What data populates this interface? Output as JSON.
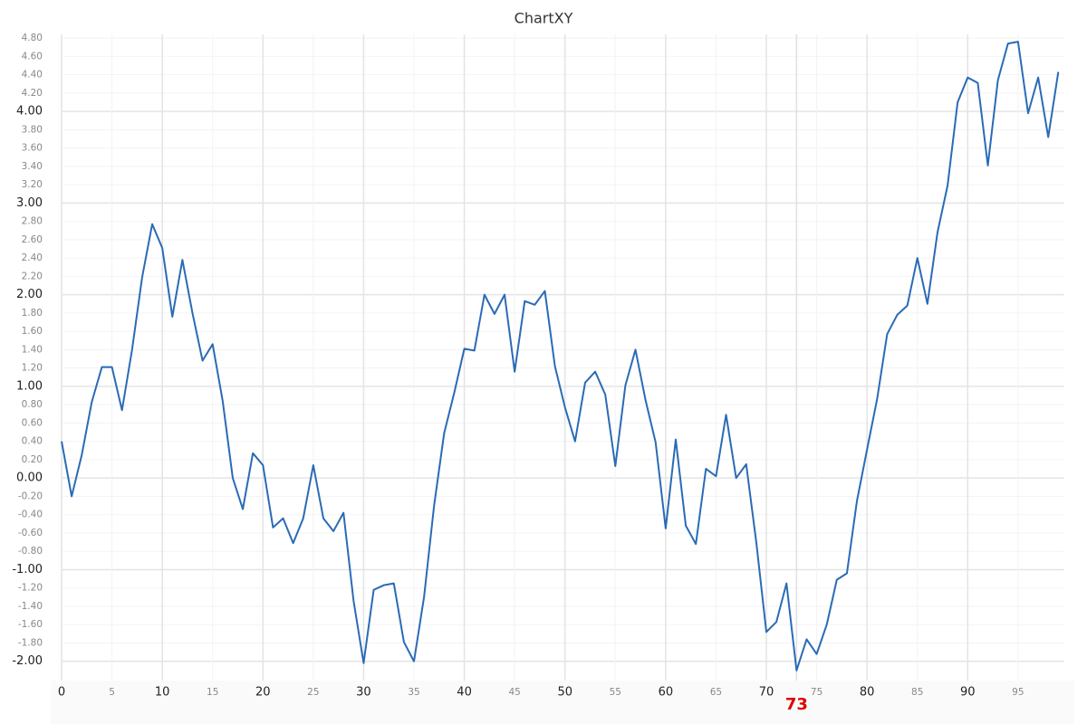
{
  "chart_data": {
    "type": "line",
    "title": "ChartXY",
    "x": [
      0,
      1,
      2,
      3,
      4,
      5,
      6,
      7,
      8,
      9,
      10,
      11,
      12,
      13,
      14,
      15,
      16,
      17,
      18,
      19,
      20,
      21,
      22,
      23,
      24,
      25,
      26,
      27,
      28,
      29,
      30,
      31,
      32,
      33,
      34,
      35,
      36,
      37,
      38,
      39,
      40,
      41,
      42,
      43,
      44,
      45,
      46,
      47,
      48,
      49,
      50,
      51,
      52,
      53,
      54,
      55,
      56,
      57,
      58,
      59,
      60,
      61,
      62,
      63,
      64,
      65,
      66,
      67,
      68,
      69,
      70,
      71,
      72,
      73,
      74,
      75,
      76,
      77,
      78,
      79,
      80,
      81,
      82,
      83,
      84,
      85,
      86,
      87,
      88,
      89,
      90,
      91,
      92,
      93,
      94,
      95,
      96,
      97,
      98,
      99
    ],
    "values": [
      0.4,
      -0.2,
      0.25,
      0.83,
      1.21,
      1.21,
      0.74,
      1.4,
      2.19,
      2.77,
      2.51,
      1.76,
      2.38,
      1.8,
      1.28,
      1.46,
      0.84,
      0.0,
      -0.34,
      0.27,
      0.14,
      -0.54,
      -0.44,
      -0.71,
      -0.44,
      0.14,
      -0.44,
      -0.58,
      -0.38,
      -1.34,
      -2.02,
      -1.22,
      -1.17,
      -1.15,
      -1.79,
      -2.0,
      -1.3,
      -0.3,
      0.49,
      0.93,
      1.41,
      1.39,
      2.0,
      1.79,
      2.0,
      1.16,
      1.93,
      1.89,
      2.04,
      1.22,
      0.77,
      0.4,
      1.04,
      1.16,
      0.91,
      0.13,
      1.01,
      1.4,
      0.85,
      0.39,
      -0.55,
      0.42,
      -0.52,
      -0.72,
      0.1,
      0.02,
      0.69,
      0.0,
      0.15,
      -0.7,
      -1.68,
      -1.57,
      -1.15,
      -2.1,
      -1.76,
      -1.92,
      -1.6,
      -1.11,
      -1.04,
      -0.25,
      0.31,
      0.86,
      1.57,
      1.78,
      1.88,
      2.4,
      1.9,
      2.68,
      3.19,
      4.1,
      4.37,
      4.31,
      3.41,
      4.34,
      4.74,
      4.76,
      3.98,
      4.37,
      3.72,
      4.43
    ],
    "color": "#2a6bb5",
    "xlim": [
      0,
      99.6
    ],
    "xticks": [
      0,
      5,
      10,
      15,
      20,
      25,
      30,
      35,
      40,
      45,
      50,
      55,
      60,
      65,
      70,
      75,
      80,
      85,
      90,
      95
    ],
    "ylim": [
      -2.21,
      4.84
    ],
    "yticks": [
      {
        "value": -2,
        "label": "-2.00"
      },
      {
        "value": -1.8,
        "label": "-1.80"
      },
      {
        "value": -1.6,
        "label": "-1.60"
      },
      {
        "value": -1.4,
        "label": "-1.40"
      },
      {
        "value": -1.2,
        "label": "-1.20"
      },
      {
        "value": -1,
        "label": "-1.00"
      },
      {
        "value": -0.8,
        "label": "-0.80"
      },
      {
        "value": -0.6,
        "label": "-0.60"
      },
      {
        "value": -0.4,
        "label": "-0.40"
      },
      {
        "value": -0.2,
        "label": "-0.20"
      },
      {
        "value": 0,
        "label": "0.00"
      },
      {
        "value": 0.2,
        "label": "0.20"
      },
      {
        "value": 0.4,
        "label": "0.40"
      },
      {
        "value": 0.6,
        "label": "0.60"
      },
      {
        "value": 0.8,
        "label": "0.80"
      },
      {
        "value": 1,
        "label": "1.00"
      },
      {
        "value": 1.2,
        "label": "1.20"
      },
      {
        "value": 1.4,
        "label": "1.40"
      },
      {
        "value": 1.6,
        "label": "1.60"
      },
      {
        "value": 1.8,
        "label": "1.80"
      },
      {
        "value": 2,
        "label": "2.00"
      },
      {
        "value": 2.2,
        "label": "2.20"
      },
      {
        "value": 2.4,
        "label": "2.40"
      },
      {
        "value": 2.6,
        "label": "2.60"
      },
      {
        "value": 2.8,
        "label": "2.80"
      },
      {
        "value": 3,
        "label": "3.00"
      },
      {
        "value": 3.2,
        "label": "3.20"
      },
      {
        "value": 3.4,
        "label": "3.40"
      },
      {
        "value": 3.6,
        "label": "3.60"
      },
      {
        "value": 3.8,
        "label": "3.80"
      },
      {
        "value": 4,
        "label": "4.00"
      },
      {
        "value": 4.2,
        "label": "4.20"
      },
      {
        "value": 4.4,
        "label": "4.40"
      },
      {
        "value": 4.6,
        "label": "4.60"
      },
      {
        "value": 4.8,
        "label": "4.80"
      }
    ],
    "grid": true,
    "cursor_x": 73
  }
}
